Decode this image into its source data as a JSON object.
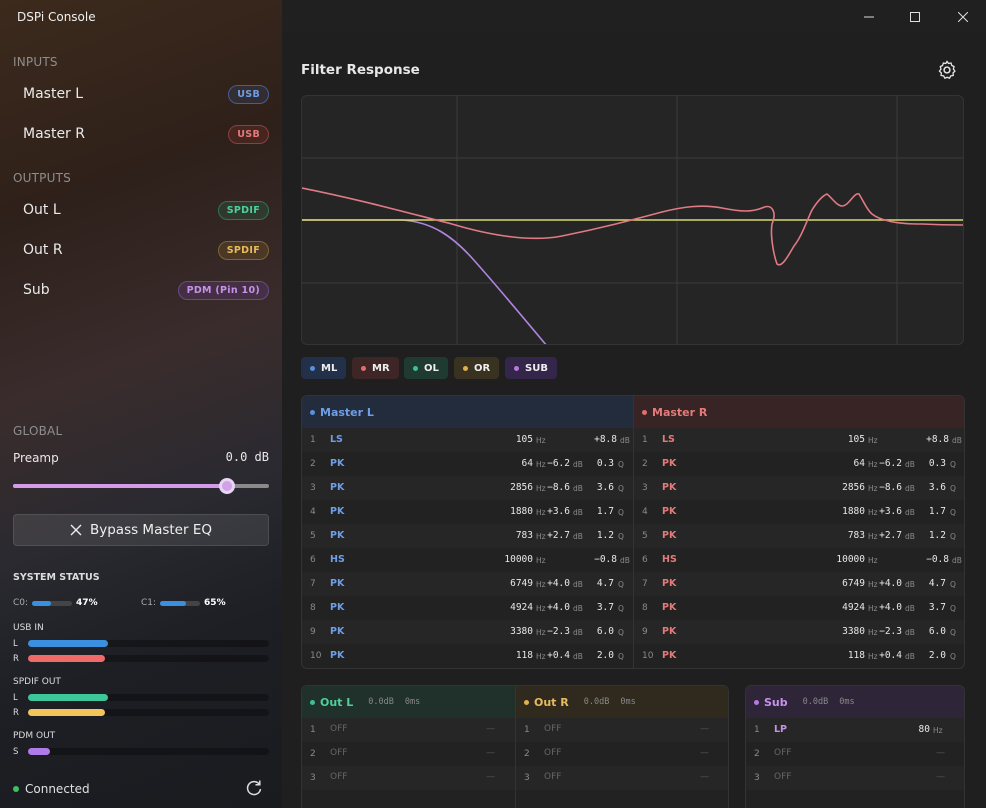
{
  "window": {
    "title": "DSPi Console",
    "minimize": "—",
    "maximize": "☐",
    "close": "✕"
  },
  "sidebar": {
    "inputs_label": "INPUTS",
    "outputs_label": "OUTPUTS",
    "inputs": [
      {
        "name": "Master L",
        "badge": "USB",
        "color": "#5b8fe0"
      },
      {
        "name": "Master R",
        "badge": "USB",
        "color": "#e07070"
      }
    ],
    "outputs": [
      {
        "name": "Out L",
        "badge": "SPDIF",
        "color": "#3fbf8f"
      },
      {
        "name": "Out R",
        "badge": "SPDIF",
        "color": "#e0b050"
      },
      {
        "name": "Sub",
        "badge": "PDM (Pin 10)",
        "color": "#b878e0"
      }
    ],
    "global_label": "GLOBAL",
    "preamp_label": "Preamp",
    "preamp_value": "0.0 dB",
    "preamp_fraction": 0.834,
    "bypass_label": "Bypass Master EQ",
    "system_status_label": "SYSTEM STATUS",
    "cpu": [
      {
        "label": "C0:",
        "value": "47%",
        "level": 0.47
      },
      {
        "label": "C1:",
        "value": "65%",
        "level": 0.65
      }
    ],
    "usb_in_label": "USB IN",
    "spdif_out_label": "SPDIF OUT",
    "pdm_out_label": "PDM OUT",
    "meters": {
      "usb_l": {
        "label": "L",
        "level": 0.33,
        "color": "#3a8fe0"
      },
      "usb_r": {
        "label": "R",
        "level": 0.32,
        "color": "#f06a6a"
      },
      "spdif_l": {
        "label": "L",
        "level": 0.33,
        "color": "#3fc59a"
      },
      "spdif_r": {
        "label": "R",
        "level": 0.32,
        "color": "#f2c45a"
      },
      "pdm_s": {
        "label": "S",
        "level": 0.09,
        "color": "#b07ae8"
      }
    },
    "connection": "Connected"
  },
  "main": {
    "filter_title": "Filter Response",
    "chips": [
      {
        "label": "ML",
        "color": "#5b8fe0",
        "bg": "#22304a"
      },
      {
        "label": "MR",
        "color": "#e07070",
        "bg": "#3e2626"
      },
      {
        "label": "OL",
        "color": "#3fbf8f",
        "bg": "#1f3a30"
      },
      {
        "label": "OR",
        "color": "#e0b050",
        "bg": "#3a3220"
      },
      {
        "label": "SUB",
        "color": "#b878e0",
        "bg": "#33264a"
      }
    ],
    "master_l": {
      "title": "Master L",
      "color": "#5b8fe0",
      "head_bg": "#232c3c"
    },
    "master_r": {
      "title": "Master R",
      "color": "#e07070",
      "head_bg": "#382424"
    },
    "bands": [
      {
        "n": "1",
        "type": "LS",
        "freq": "105",
        "gain": "+8.8",
        "q": ""
      },
      {
        "n": "2",
        "type": "PK",
        "freq": "64",
        "gain": "−6.2",
        "q": "0.3"
      },
      {
        "n": "3",
        "type": "PK",
        "freq": "2856",
        "gain": "−8.6",
        "q": "3.6"
      },
      {
        "n": "4",
        "type": "PK",
        "freq": "1880",
        "gain": "+3.6",
        "q": "1.7"
      },
      {
        "n": "5",
        "type": "PK",
        "freq": "783",
        "gain": "+2.7",
        "q": "1.2"
      },
      {
        "n": "6",
        "type": "HS",
        "freq": "10000",
        "gain": "−0.8",
        "q": ""
      },
      {
        "n": "7",
        "type": "PK",
        "freq": "6749",
        "gain": "+4.0",
        "q": "4.7"
      },
      {
        "n": "8",
        "type": "PK",
        "freq": "4924",
        "gain": "+4.0",
        "q": "3.7"
      },
      {
        "n": "9",
        "type": "PK",
        "freq": "3380",
        "gain": "−2.3",
        "q": "6.0"
      },
      {
        "n": "10",
        "type": "PK",
        "freq": "118",
        "gain": "+0.4",
        "q": "2.0"
      }
    ],
    "units": {
      "hz": "Hz",
      "db": "dB",
      "q": "Q"
    },
    "outputs": [
      {
        "title": "Out L",
        "meta1": "0.0dB",
        "meta2": "0ms",
        "color": "#3fbf8f",
        "head_bg": "#20302a",
        "rows": [
          {
            "n": "1",
            "text": "OFF"
          },
          {
            "n": "2",
            "text": "OFF"
          },
          {
            "n": "3",
            "text": "OFF"
          }
        ]
      },
      {
        "title": "Out R",
        "meta1": "0.0dB",
        "meta2": "0ms",
        "color": "#e0b050",
        "head_bg": "#302a1e",
        "rows": [
          {
            "n": "1",
            "text": "OFF"
          },
          {
            "n": "2",
            "text": "OFF"
          },
          {
            "n": "3",
            "text": "OFF"
          }
        ]
      },
      {
        "title": "Sub",
        "meta1": "0.0dB",
        "meta2": "0ms",
        "color": "#b878e0",
        "head_bg": "#2e2638",
        "rows": [
          {
            "n": "1",
            "type": "LP",
            "freq": "80"
          },
          {
            "n": "2",
            "text": "OFF"
          },
          {
            "n": "3",
            "text": "OFF"
          }
        ]
      }
    ],
    "dash": "—"
  }
}
